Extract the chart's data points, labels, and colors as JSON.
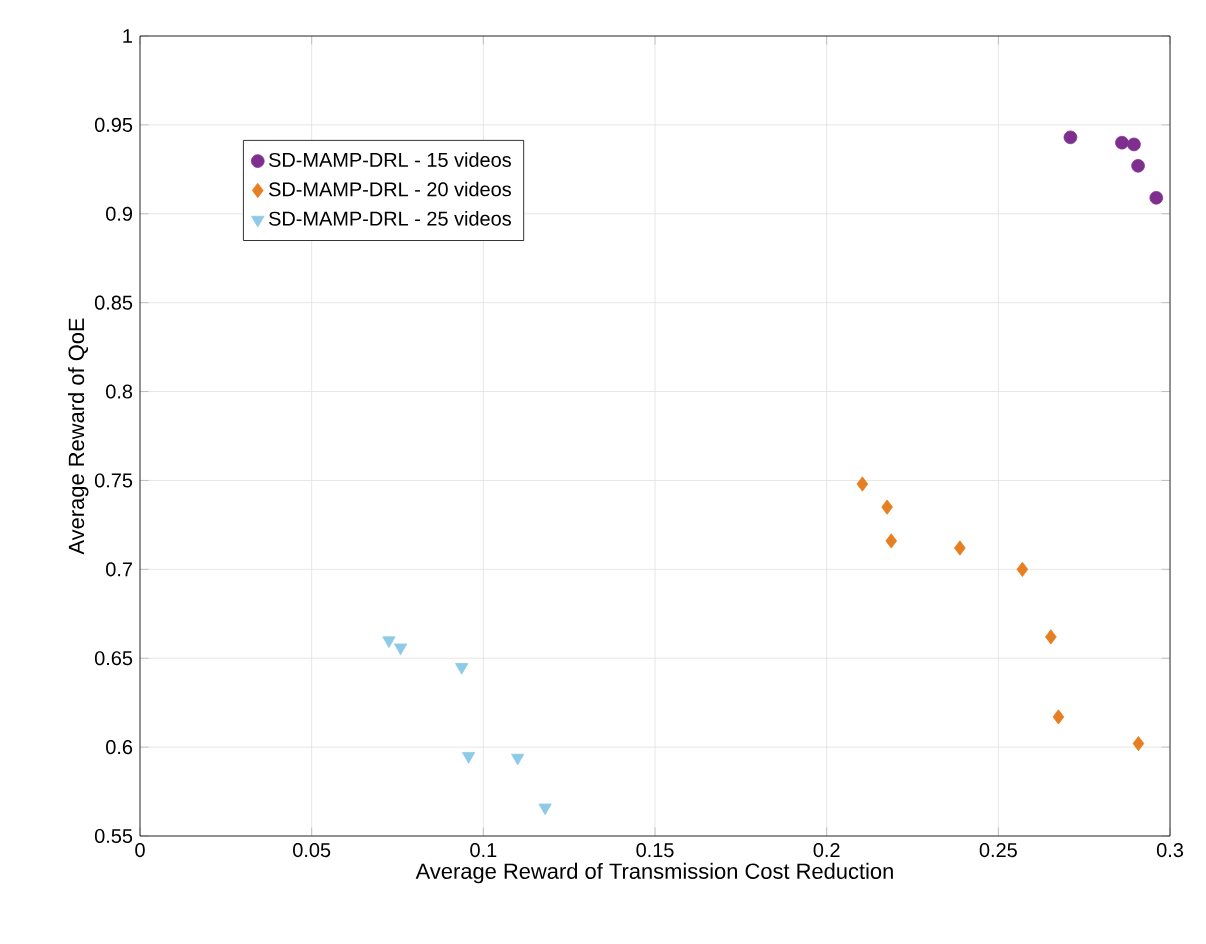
{
  "chart_data": {
    "type": "scatter",
    "xlabel": "Average Reward of Transmission Cost Reduction",
    "ylabel": "Average Reward of QoE",
    "xlim": [
      0,
      0.3
    ],
    "ylim": [
      0.55,
      1
    ],
    "xticks": [
      0,
      0.05,
      0.1,
      0.15,
      0.2,
      0.25,
      0.3
    ],
    "yticks": [
      0.55,
      0.6,
      0.65,
      0.7,
      0.75,
      0.8,
      0.85,
      0.9,
      0.95,
      1
    ],
    "grid": true,
    "legend": "top left",
    "series": [
      {
        "name": "SD-MAMP-DRL - 15 videos",
        "color": "#7e2f8e",
        "marker": "circle",
        "x": [
          0.271,
          0.286,
          0.2895,
          0.2907,
          0.296
        ],
        "values": [
          0.943,
          0.94,
          0.939,
          0.927,
          0.909
        ]
      },
      {
        "name": "SD-MAMP-DRL - 20 videos",
        "color": "#e67e22",
        "marker": "diamond",
        "x": [
          0.2104,
          0.2176,
          0.2188,
          0.2388,
          0.257,
          0.2653,
          0.2675,
          0.2908
        ],
        "values": [
          0.748,
          0.735,
          0.716,
          0.712,
          0.7,
          0.662,
          0.617,
          0.602
        ]
      },
      {
        "name": "SD-MAMP-DRL - 25 videos",
        "color": "#8ecae6",
        "marker": "triangle",
        "x": [
          0.0725,
          0.0759,
          0.0937,
          0.0957,
          0.11,
          0.118
        ],
        "values": [
          0.66,
          0.656,
          0.645,
          0.595,
          0.594,
          0.566
        ]
      }
    ]
  }
}
